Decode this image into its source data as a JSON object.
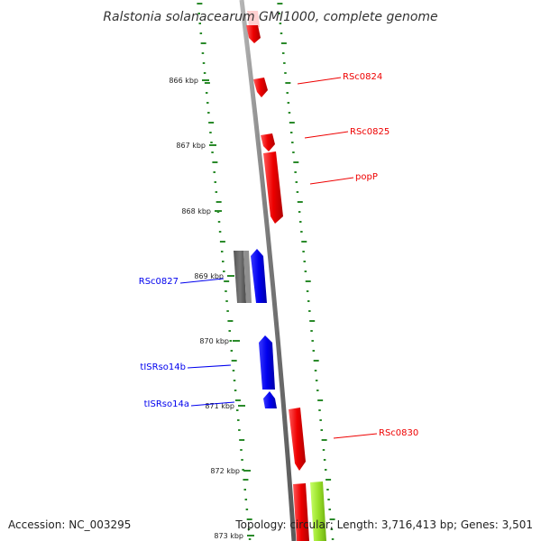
{
  "title": "Ralstonia solanacearum GMI1000, complete genome",
  "footer": {
    "accession": "Accession: NC_003295",
    "topology": "Topology: circular; Length: 3,716,413 bp; Genes: 3,501"
  },
  "colors": {
    "forward_gene": "#ee0000",
    "reverse_gene": "#0000ee",
    "other_gene": "#707070",
    "lime_gene": "#9be22a",
    "backbone": "#8a8a8a",
    "gc_dots": "#2a8a2a"
  },
  "ticks": [
    {
      "label": "866 kbp"
    },
    {
      "label": "867 kbp"
    },
    {
      "label": "868 kbp"
    },
    {
      "label": "869 kbp"
    },
    {
      "label": "870 kbp"
    },
    {
      "label": "871 kbp"
    },
    {
      "label": "872 kbp"
    },
    {
      "label": "873 kbp"
    }
  ],
  "gene_labels": [
    {
      "text": "RSc0824",
      "strand": "forward"
    },
    {
      "text": "RSc0825",
      "strand": "forward"
    },
    {
      "text": "popP",
      "strand": "forward"
    },
    {
      "text": "RSc0827",
      "strand": "reverse"
    },
    {
      "text": "tISRso14b",
      "strand": "reverse"
    },
    {
      "text": "tISRso14a",
      "strand": "reverse"
    },
    {
      "text": "RSc0830",
      "strand": "forward"
    }
  ]
}
